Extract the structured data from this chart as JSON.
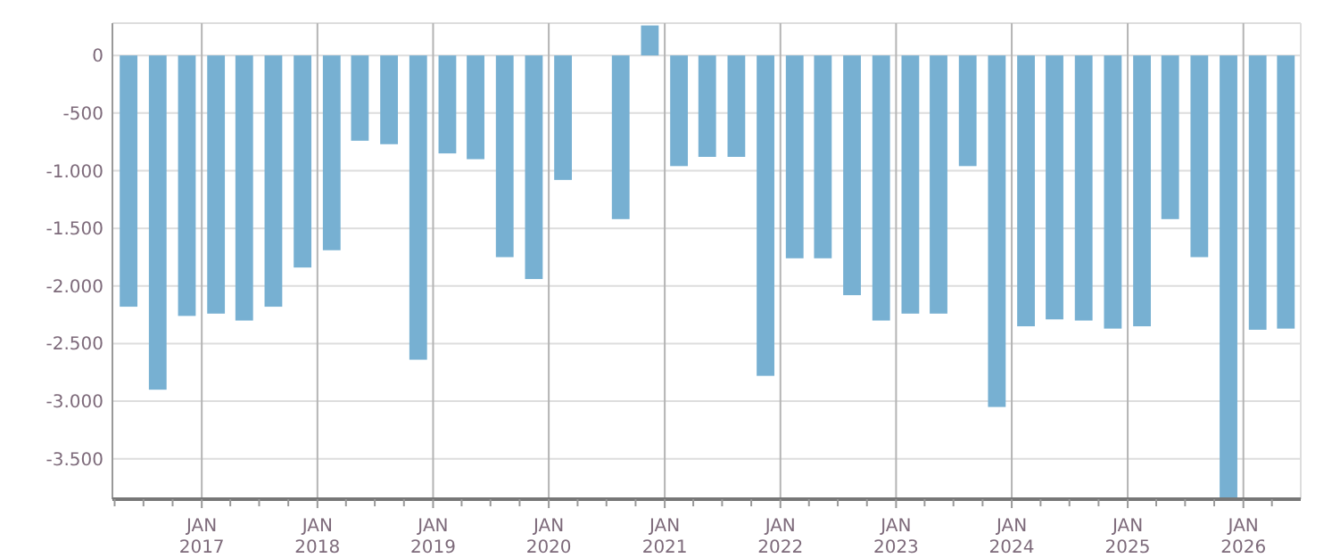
{
  "chart_data": {
    "type": "bar",
    "color": "#77b0d2",
    "x": [
      "2016-05-15",
      "2016-08-15",
      "2016-11-15",
      "2017-02-15",
      "2017-05-15",
      "2017-08-15",
      "2017-11-15",
      "2018-02-15",
      "2018-05-15",
      "2018-08-15",
      "2018-11-15",
      "2019-02-15",
      "2019-05-15",
      "2019-08-15",
      "2019-11-15",
      "2020-02-15",
      "2020-05-15",
      "2020-08-15",
      "2020-11-15",
      "2021-02-15",
      "2021-05-15",
      "2021-08-15",
      "2021-11-15",
      "2022-02-15",
      "2022-05-15",
      "2022-08-15",
      "2022-11-15",
      "2023-02-15",
      "2023-05-15",
      "2023-08-15",
      "2023-11-15",
      "2024-02-15",
      "2024-05-15",
      "2024-08-15",
      "2024-11-15",
      "2025-02-15",
      "2025-05-15",
      "2025-08-15",
      "2025-11-15",
      "2026-02-15",
      "2026-05-15"
    ],
    "values": [
      -2180,
      -2900,
      -2260,
      -2240,
      -2300,
      -2180,
      -1840,
      -1690,
      -740,
      -770,
      -2640,
      -850,
      -900,
      -1750,
      -1940,
      -1080,
      null,
      -1420,
      260,
      -960,
      -880,
      -880,
      -2780,
      -1760,
      -1760,
      -2080,
      -2300,
      -2240,
      -2240,
      -960,
      -3050,
      -2350,
      -2290,
      -2300,
      -2370,
      -2350,
      -1420,
      -1750,
      -3850,
      -2380,
      -2370
    ],
    "xlim": [
      "2016-03-25",
      "2026-07-01"
    ],
    "xticks": [
      {
        "value": "2016-04-01",
        "label": null
      },
      {
        "value": "2016-07-01",
        "label": null
      },
      {
        "value": "2016-10-01",
        "label": null
      },
      {
        "value": "2017-01-01",
        "label": "JAN 2017"
      },
      {
        "value": "2017-04-01",
        "label": null
      },
      {
        "value": "2017-07-01",
        "label": null
      },
      {
        "value": "2017-10-01",
        "label": null
      },
      {
        "value": "2018-01-01",
        "label": "JAN 2018"
      },
      {
        "value": "2018-04-01",
        "label": null
      },
      {
        "value": "2018-07-01",
        "label": null
      },
      {
        "value": "2018-10-01",
        "label": null
      },
      {
        "value": "2019-01-01",
        "label": "JAN 2019"
      },
      {
        "value": "2019-04-01",
        "label": null
      },
      {
        "value": "2019-07-01",
        "label": null
      },
      {
        "value": "2019-10-01",
        "label": null
      },
      {
        "value": "2020-01-01",
        "label": "JAN 2020"
      },
      {
        "value": "2020-04-01",
        "label": null
      },
      {
        "value": "2020-07-01",
        "label": null
      },
      {
        "value": "2020-10-01",
        "label": null
      },
      {
        "value": "2021-01-01",
        "label": "JAN 2021"
      },
      {
        "value": "2021-04-01",
        "label": null
      },
      {
        "value": "2021-07-01",
        "label": null
      },
      {
        "value": "2021-10-01",
        "label": null
      },
      {
        "value": "2022-01-01",
        "label": "JAN 2022"
      },
      {
        "value": "2022-04-01",
        "label": null
      },
      {
        "value": "2022-07-01",
        "label": null
      },
      {
        "value": "2022-10-01",
        "label": null
      },
      {
        "value": "2023-01-01",
        "label": "JAN 2023"
      },
      {
        "value": "2023-04-01",
        "label": null
      },
      {
        "value": "2023-07-01",
        "label": null
      },
      {
        "value": "2023-10-01",
        "label": null
      },
      {
        "value": "2024-01-01",
        "label": "JAN 2024"
      },
      {
        "value": "2024-04-01",
        "label": null
      },
      {
        "value": "2024-07-01",
        "label": null
      },
      {
        "value": "2024-10-01",
        "label": null
      },
      {
        "value": "2025-01-01",
        "label": "JAN 2025"
      },
      {
        "value": "2025-04-01",
        "label": null
      },
      {
        "value": "2025-07-01",
        "label": null
      },
      {
        "value": "2025-10-01",
        "label": null
      },
      {
        "value": "2026-01-01",
        "label": "JAN 2026"
      },
      {
        "value": "2026-04-01",
        "label": null
      }
    ],
    "ylim": [
      -3850,
      280
    ],
    "yticks": [
      0,
      -500,
      {
        "value": -1000,
        "label": "-1.000"
      },
      {
        "value": -1500,
        "label": "-1.500"
      },
      {
        "value": -2000,
        "label": "-2.000"
      },
      {
        "value": -2500,
        "label": "-2.500"
      },
      {
        "value": -3000,
        "label": "-3.000"
      },
      {
        "value": -3500,
        "label": "-3.500"
      }
    ],
    "grid": true
  }
}
